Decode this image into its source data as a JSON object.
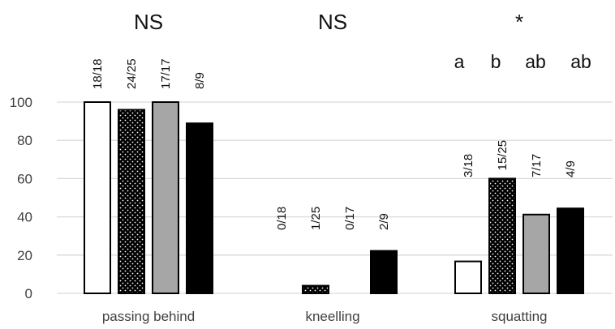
{
  "chart_data": {
    "type": "bar",
    "categories": [
      "passing behind",
      "kneelling",
      "squatting"
    ],
    "ylim": [
      0,
      100
    ],
    "yticks": [
      0,
      20,
      40,
      60,
      80,
      100
    ],
    "grid": true,
    "series": [
      {
        "values": [
          100,
          0,
          16.7
        ],
        "counts": [
          "18/18",
          "0/18",
          "3/18"
        ],
        "fill": "#ffffff",
        "pattern": "none"
      },
      {
        "values": [
          96,
          4,
          60
        ],
        "counts": [
          "24/25",
          "1/25",
          "15/25"
        ],
        "fill": "#000000",
        "pattern": "dots"
      },
      {
        "values": [
          100,
          0,
          41.2
        ],
        "counts": [
          "17/17",
          "0/17",
          "7/17"
        ],
        "fill": "#a6a6a6",
        "pattern": "none"
      },
      {
        "values": [
          88.9,
          22.2,
          44.4
        ],
        "counts": [
          "8/9",
          "2/9",
          "4/9"
        ],
        "fill": "#000000",
        "pattern": "none"
      }
    ],
    "significance": [
      "NS",
      "NS",
      "*"
    ],
    "group_letters": [
      [],
      [],
      [
        "a",
        "b",
        "ab",
        "ab"
      ]
    ],
    "colors": {
      "grid": "#d9d9d9",
      "axis_text": "#404040",
      "text": "#111111"
    }
  }
}
